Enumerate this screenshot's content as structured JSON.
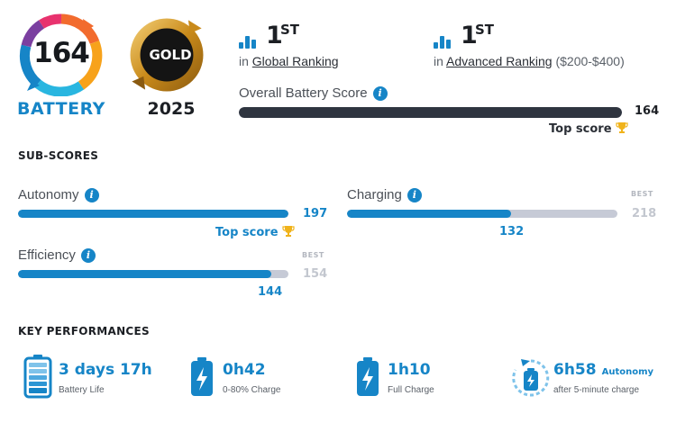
{
  "battery_score": {
    "value": "164",
    "label": "BATTERY",
    "badge_colors": [
      "#e8326e",
      "#7b3fa0",
      "#1685c7",
      "#29b6e0",
      "#f7a21b",
      "#f26b2e"
    ]
  },
  "award": {
    "label": "GOLD",
    "year": "2025"
  },
  "rankings": [
    {
      "rank": "1",
      "suffix": "ST",
      "prefix": "in",
      "link": "Global Ranking",
      "extra": ""
    },
    {
      "rank": "1",
      "suffix": "ST",
      "prefix": "in",
      "link": "Advanced Ranking",
      "extra": "($200-$400)"
    }
  ],
  "overall": {
    "label": "Overall Battery Score",
    "value": "164",
    "fraction": 1.0,
    "top_score": "Top score",
    "bar_color": "#2f3540"
  },
  "subscores": {
    "title": "SUB-SCORES",
    "autonomy": {
      "label": "Autonomy",
      "value": "197",
      "fraction": 1.0,
      "top_score": "Top score"
    },
    "charging": {
      "label": "Charging",
      "value": "132",
      "best_label": "BEST",
      "best": "218",
      "fraction": 0.606
    },
    "efficiency": {
      "label": "Efficiency",
      "value": "144",
      "best_label": "BEST",
      "best": "154",
      "fraction": 0.935
    }
  },
  "key_performances": {
    "title": "KEY PERFORMANCES",
    "items": [
      {
        "value": "3 days 17h",
        "caption": "Battery Life",
        "icon": "battery-full-icon"
      },
      {
        "value": "0h42",
        "caption": "0-80% Charge",
        "icon": "battery-charging-icon"
      },
      {
        "value": "1h10",
        "caption": "Full Charge",
        "icon": "battery-charging-icon"
      },
      {
        "value": "6h58",
        "extra": "Autonomy",
        "caption": "after 5-minute charge",
        "icon": "battery-timer-icon"
      }
    ]
  },
  "colors": {
    "accent": "#1685c7",
    "gold": "#f0b31b",
    "track": "#c6cad6"
  }
}
